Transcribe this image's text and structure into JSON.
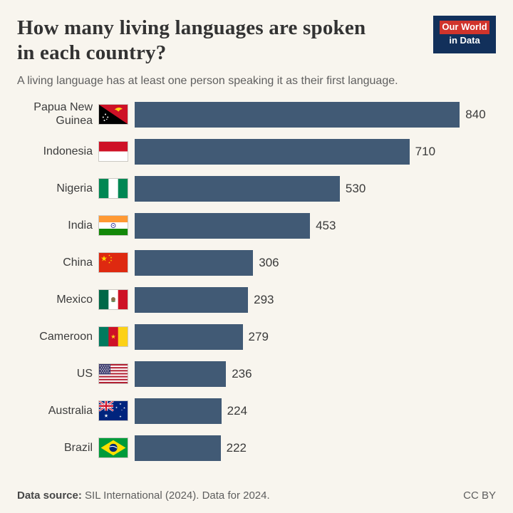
{
  "header": {
    "title": "How many living languages are spoken in each country?",
    "subtitle": "A living language has at least one person speaking it as their first language.",
    "logo": {
      "line1": "Our World",
      "line2": "in Data"
    }
  },
  "chart_data": {
    "type": "bar",
    "orientation": "horizontal",
    "title": "How many living languages are spoken in each country?",
    "subtitle": "A living language has at least one person speaking it as their first language.",
    "categories": [
      "Papua New Guinea",
      "Indonesia",
      "Nigeria",
      "India",
      "China",
      "Mexico",
      "Cameroon",
      "US",
      "Australia",
      "Brazil"
    ],
    "values": [
      840,
      710,
      530,
      453,
      306,
      293,
      279,
      236,
      224,
      222
    ],
    "xlim": [
      0,
      840
    ],
    "value_labels_shown": true,
    "grid": false,
    "legend": false,
    "flag_icons": [
      "papua-new-guinea",
      "indonesia",
      "nigeria",
      "india",
      "china",
      "mexico",
      "cameroon",
      "us",
      "australia",
      "brazil"
    ]
  },
  "colors": {
    "background": "#f8f5ee",
    "bar": "#415a75",
    "logo_bg": "#12305b",
    "logo_red": "#d0342c"
  },
  "footer": {
    "source_label": "Data source:",
    "source_text": " SIL International (2024). Data for 2024.",
    "license": "CC BY"
  }
}
